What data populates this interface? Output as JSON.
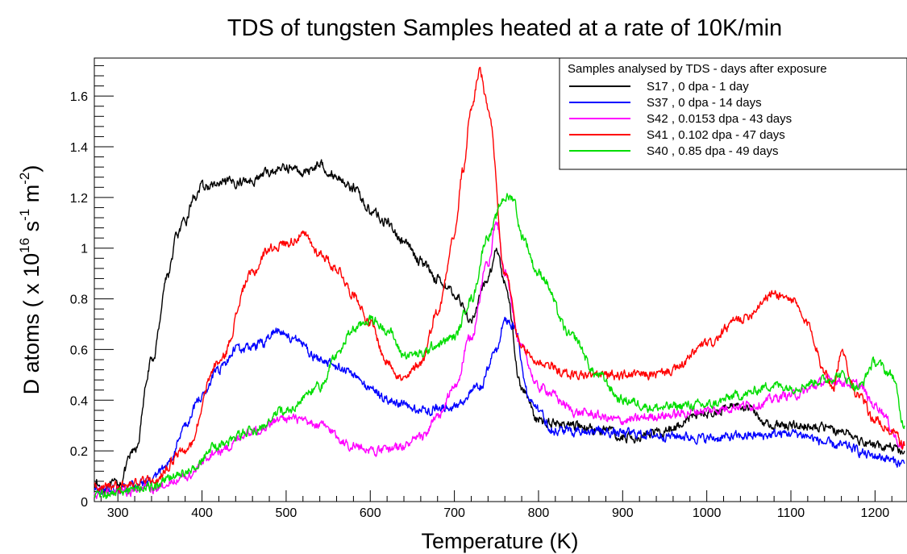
{
  "chart_data": {
    "type": "line",
    "title": "TDS of tungsten Samples heated at a rate of 10K/min",
    "xlabel": "Temperature (K)",
    "ylabel": "D atoms ( x 10^16 s^-1 m^-2)",
    "ylabel_parts": {
      "prefix": "D atoms ( x 10",
      "exp1": "16",
      "mid": " s",
      "exp2": "-1",
      "mid2": " m",
      "exp3": "-2",
      "suffix": ")"
    },
    "xlim": [
      272,
      1238
    ],
    "ylim": [
      0,
      1.75
    ],
    "x_ticks": [
      "300",
      "400",
      "500",
      "600",
      "700",
      "800",
      "900",
      "1000",
      "1100",
      "1200"
    ],
    "y_ticks": [
      "0",
      "0.2",
      "0.4",
      "0.6",
      "0.8",
      "1",
      "1.2",
      "1.4",
      "1.6"
    ],
    "legend": {
      "title": "Samples analysed by TDS - days after exposure",
      "placement": "top-right"
    },
    "series": [
      {
        "name": "S17 , 0 dpa - 1 day",
        "color": "#000000",
        "x": [
          272,
          280,
          300,
          320,
          340,
          360,
          370,
          380,
          390,
          400,
          420,
          440,
          460,
          480,
          500,
          520,
          540,
          560,
          580,
          600,
          620,
          640,
          660,
          680,
          700,
          720,
          740,
          750,
          760,
          780,
          800,
          840,
          880,
          900,
          940,
          1000,
          1040,
          1080,
          1120,
          1160,
          1200,
          1220,
          1235
        ],
        "y": [
          0.08,
          0.05,
          0.07,
          0.2,
          0.55,
          0.9,
          1.05,
          1.1,
          1.2,
          1.24,
          1.25,
          1.26,
          1.27,
          1.3,
          1.32,
          1.3,
          1.33,
          1.28,
          1.24,
          1.15,
          1.1,
          1.02,
          0.95,
          0.88,
          0.82,
          0.72,
          0.88,
          1.0,
          0.86,
          0.45,
          0.32,
          0.3,
          0.28,
          0.25,
          0.27,
          0.35,
          0.38,
          0.3,
          0.3,
          0.28,
          0.22,
          0.22,
          0.2
        ]
      },
      {
        "name": "S37 , 0 dpa - 14 days",
        "color": "#0000ff",
        "x": [
          272,
          300,
          340,
          360,
          380,
          400,
          420,
          440,
          450,
          470,
          490,
          510,
          540,
          570,
          600,
          620,
          660,
          700,
          730,
          750,
          760,
          770,
          790,
          820,
          860,
          900,
          960,
          1000,
          1060,
          1100,
          1160,
          1200,
          1235
        ],
        "y": [
          0.05,
          0.05,
          0.08,
          0.15,
          0.3,
          0.42,
          0.52,
          0.6,
          0.6,
          0.62,
          0.68,
          0.64,
          0.56,
          0.52,
          0.45,
          0.4,
          0.36,
          0.38,
          0.45,
          0.6,
          0.72,
          0.7,
          0.4,
          0.28,
          0.28,
          0.27,
          0.26,
          0.25,
          0.26,
          0.27,
          0.22,
          0.18,
          0.15
        ]
      },
      {
        "name": "S42 , 0.0153 dpa - 43 days",
        "color": "#ff00ff",
        "x": [
          272,
          300,
          340,
          380,
          420,
          460,
          500,
          540,
          580,
          610,
          640,
          660,
          680,
          700,
          720,
          740,
          750,
          760,
          780,
          800,
          850,
          900,
          950,
          1000,
          1050,
          1100,
          1150,
          1180,
          1200,
          1235
        ],
        "y": [
          0.03,
          0.04,
          0.05,
          0.1,
          0.2,
          0.28,
          0.33,
          0.3,
          0.22,
          0.2,
          0.22,
          0.25,
          0.33,
          0.45,
          0.65,
          0.95,
          1.1,
          0.9,
          0.6,
          0.45,
          0.35,
          0.32,
          0.34,
          0.36,
          0.38,
          0.42,
          0.48,
          0.46,
          0.38,
          0.22
        ]
      },
      {
        "name": "S41 , 0.102 dpa - 47 days",
        "color": "#ff0000",
        "x": [
          272,
          300,
          340,
          380,
          420,
          460,
          480,
          500,
          520,
          540,
          560,
          580,
          600,
          620,
          640,
          660,
          680,
          700,
          710,
          720,
          730,
          740,
          760,
          780,
          800,
          840,
          870,
          900,
          940,
          960,
          1000,
          1040,
          1080,
          1100,
          1120,
          1140,
          1150,
          1160,
          1180,
          1200,
          1220,
          1235
        ],
        "y": [
          0.06,
          0.06,
          0.08,
          0.2,
          0.55,
          0.9,
          1.0,
          1.02,
          1.05,
          0.98,
          0.92,
          0.82,
          0.7,
          0.55,
          0.48,
          0.55,
          0.75,
          1.05,
          1.3,
          1.55,
          1.7,
          1.55,
          0.9,
          0.6,
          0.55,
          0.5,
          0.5,
          0.5,
          0.5,
          0.52,
          0.62,
          0.72,
          0.82,
          0.8,
          0.7,
          0.52,
          0.45,
          0.58,
          0.42,
          0.32,
          0.28,
          0.22
        ]
      },
      {
        "name": "S40 , 0.85 dpa - 49 days",
        "color": "#00dd00",
        "x": [
          272,
          300,
          340,
          380,
          420,
          460,
          500,
          540,
          560,
          580,
          600,
          620,
          640,
          660,
          680,
          700,
          720,
          740,
          760,
          770,
          780,
          800,
          840,
          870,
          900,
          940,
          980,
          1000,
          1040,
          1080,
          1100,
          1140,
          1160,
          1180,
          1200,
          1220,
          1235
        ],
        "y": [
          0.03,
          0.03,
          0.06,
          0.12,
          0.22,
          0.28,
          0.36,
          0.45,
          0.58,
          0.68,
          0.72,
          0.68,
          0.58,
          0.58,
          0.62,
          0.65,
          0.8,
          1.05,
          1.2,
          1.2,
          1.05,
          0.9,
          0.65,
          0.5,
          0.4,
          0.37,
          0.38,
          0.38,
          0.42,
          0.46,
          0.45,
          0.48,
          0.5,
          0.45,
          0.55,
          0.5,
          0.3
        ]
      }
    ]
  }
}
